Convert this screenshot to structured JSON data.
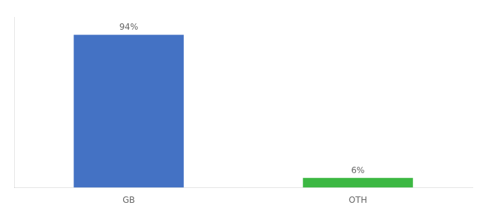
{
  "chart_data": {
    "type": "bar",
    "categories": [
      "GB",
      "OTH"
    ],
    "values": [
      94,
      6
    ],
    "value_labels": [
      "94%",
      "6%"
    ],
    "colors": [
      "#4472c4",
      "#3cb843"
    ],
    "ylim": [
      0,
      105
    ],
    "grid": false,
    "data_labels": true,
    "tick_labels": "x"
  }
}
